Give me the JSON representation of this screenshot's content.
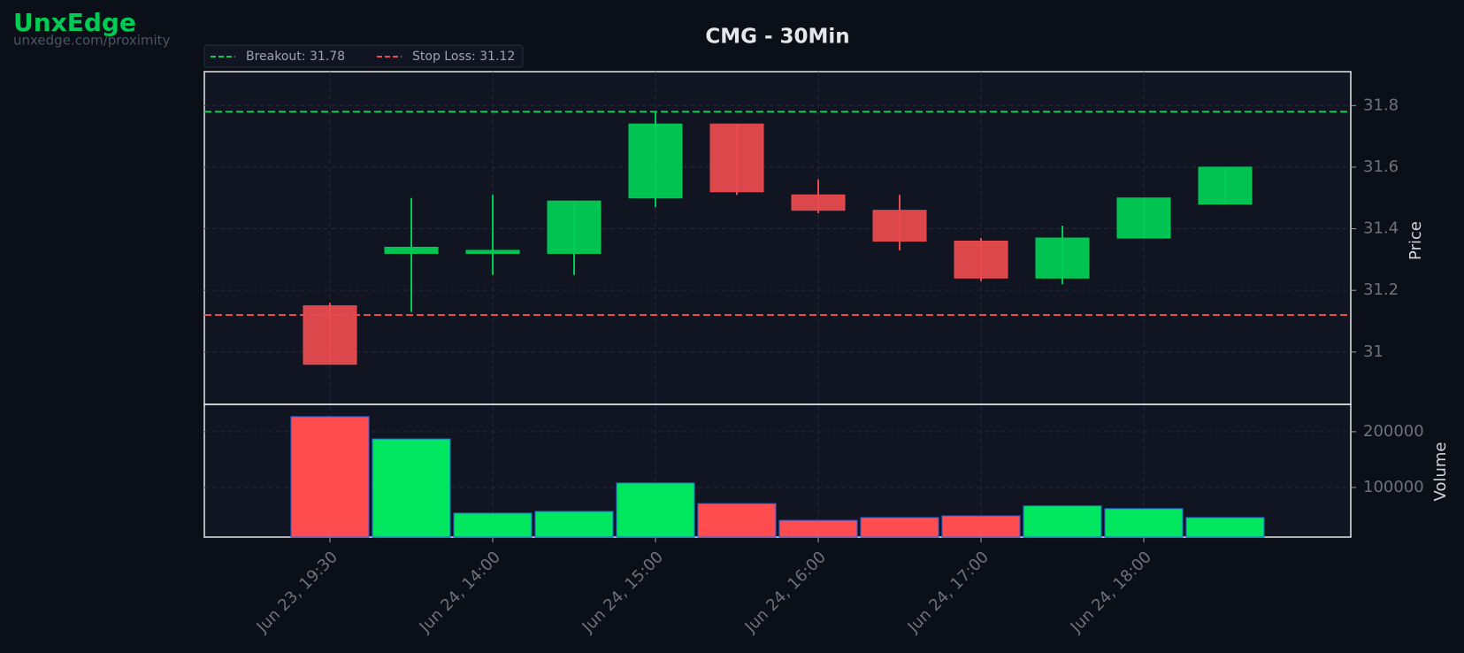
{
  "brand": {
    "name": "UnxEdge",
    "url": "unxedge.com/proximity"
  },
  "chart_data": {
    "type": "candlestick",
    "title": "CMG - 30Min",
    "categories": [
      "Jun 23, 19:30",
      null,
      "Jun 24, 14:00",
      null,
      "Jun 24, 15:00",
      null,
      "Jun 24, 16:00",
      null,
      "Jun 24, 17:00",
      null,
      "Jun 24, 18:00",
      null
    ],
    "open": [
      31.15,
      31.32,
      31.32,
      31.32,
      31.5,
      31.74,
      31.51,
      31.46,
      31.36,
      31.24,
      31.37,
      31.48
    ],
    "high": [
      31.16,
      31.5,
      31.51,
      31.49,
      31.78,
      31.74,
      31.56,
      31.51,
      31.37,
      31.41,
      31.5,
      31.6
    ],
    "low": [
      30.96,
      31.13,
      31.25,
      31.25,
      31.47,
      31.51,
      31.45,
      31.33,
      31.23,
      31.22,
      31.37,
      31.48
    ],
    "close": [
      30.96,
      31.34,
      31.33,
      31.49,
      31.74,
      31.52,
      31.46,
      31.36,
      31.24,
      31.37,
      31.5,
      31.6
    ],
    "up_color": "#00cc55",
    "down_color": "#e84a4f",
    "ylabel": "Price",
    "ylim": [
      30.83,
      31.91
    ],
    "yticks": [
      31.0,
      31.2,
      31.4,
      31.6,
      31.8
    ],
    "grid": true,
    "lines": [
      {
        "label": "Breakout: 31.78",
        "value": 31.78,
        "color": "#00cc55"
      },
      {
        "label": "Stop Loss: 31.12",
        "value": 31.12,
        "color": "#e84a4f"
      }
    ],
    "volume": {
      "label": "Volume",
      "values": [
        227000,
        187000,
        54000,
        57000,
        108000,
        71000,
        41000,
        46000,
        49000,
        67000,
        62000,
        46000
      ],
      "up_color": "#00e65f",
      "down_color": "#ff4d4f",
      "ylim": [
        11000,
        249000
      ],
      "yticks": [
        100000,
        200000
      ]
    }
  }
}
